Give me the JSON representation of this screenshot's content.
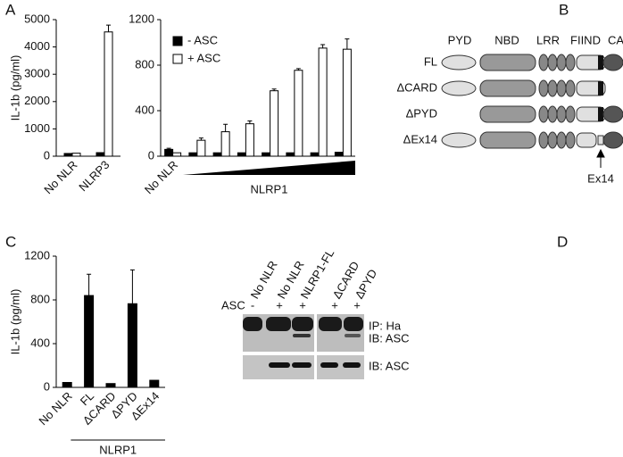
{
  "panels": [
    "A",
    "B",
    "C",
    "D"
  ],
  "chart_data": [
    {
      "type": "bar",
      "y_label": "IL-1b (pg/ml)",
      "categories": [
        "No NLR",
        "NLRP3"
      ],
      "series": [
        {
          "color": "#000000",
          "values": [
            100,
            130
          ],
          "errors": [
            null,
            null
          ]
        },
        {
          "color": "#ffffff",
          "values": [
            110,
            4550
          ],
          "errors": [
            null,
            250
          ]
        }
      ],
      "ylim": [
        0,
        5000
      ],
      "yticks": [
        0,
        1000,
        2000,
        3000,
        4000,
        5000
      ]
    },
    {
      "type": "bar",
      "x_label": "NLRP1",
      "categories": [
        "No NLR",
        null,
        null,
        null,
        null,
        null,
        null,
        null
      ],
      "series": [
        {
          "name": "- ASC",
          "color": "#000000",
          "values": [
            60,
            30,
            30,
            30,
            30,
            30,
            30,
            35
          ],
          "errors": [
            10,
            null,
            null,
            null,
            null,
            null,
            null,
            null
          ]
        },
        {
          "name": "+ ASC",
          "color": "#ffffff",
          "values": [
            30,
            140,
            215,
            285,
            575,
            755,
            950,
            940
          ],
          "errors": [
            null,
            20,
            65,
            25,
            15,
            15,
            30,
            90
          ]
        }
      ],
      "ylim": [
        0,
        1200
      ],
      "yticks": [
        0,
        400,
        800,
        1200
      ]
    },
    {
      "type": "bar",
      "y_label": "IL-1b (pg/ml)",
      "group_label": "NLRP1",
      "categories": [
        "No NLR",
        "FL",
        "ΔCARD",
        "ΔPYD",
        "ΔEx14"
      ],
      "series": [
        {
          "color": "#000000",
          "values": [
            45,
            840,
            35,
            765,
            65
          ],
          "errors": [
            null,
            195,
            null,
            310,
            null
          ]
        }
      ],
      "ylim": [
        0,
        1200
      ],
      "yticks": [
        0,
        400,
        800,
        1200
      ]
    }
  ],
  "diagram": {
    "domains": [
      "PYD",
      "NBD",
      "LRR",
      "FIIND",
      "CARD"
    ],
    "constructs": [
      "FL",
      "ΔCARD",
      "ΔPYD",
      "ΔEx14"
    ],
    "annotation": "Ex14"
  },
  "blot": {
    "lanes": [
      "No NLR",
      "No NLR",
      "NLRP1-FL",
      "ΔCARD",
      "ΔPYD"
    ],
    "row_label": "ASC",
    "signs": [
      "-",
      "+",
      "+",
      "+",
      "+"
    ],
    "labels": [
      "IP: Ha",
      "IB: ASC",
      "IB: ASC"
    ]
  }
}
